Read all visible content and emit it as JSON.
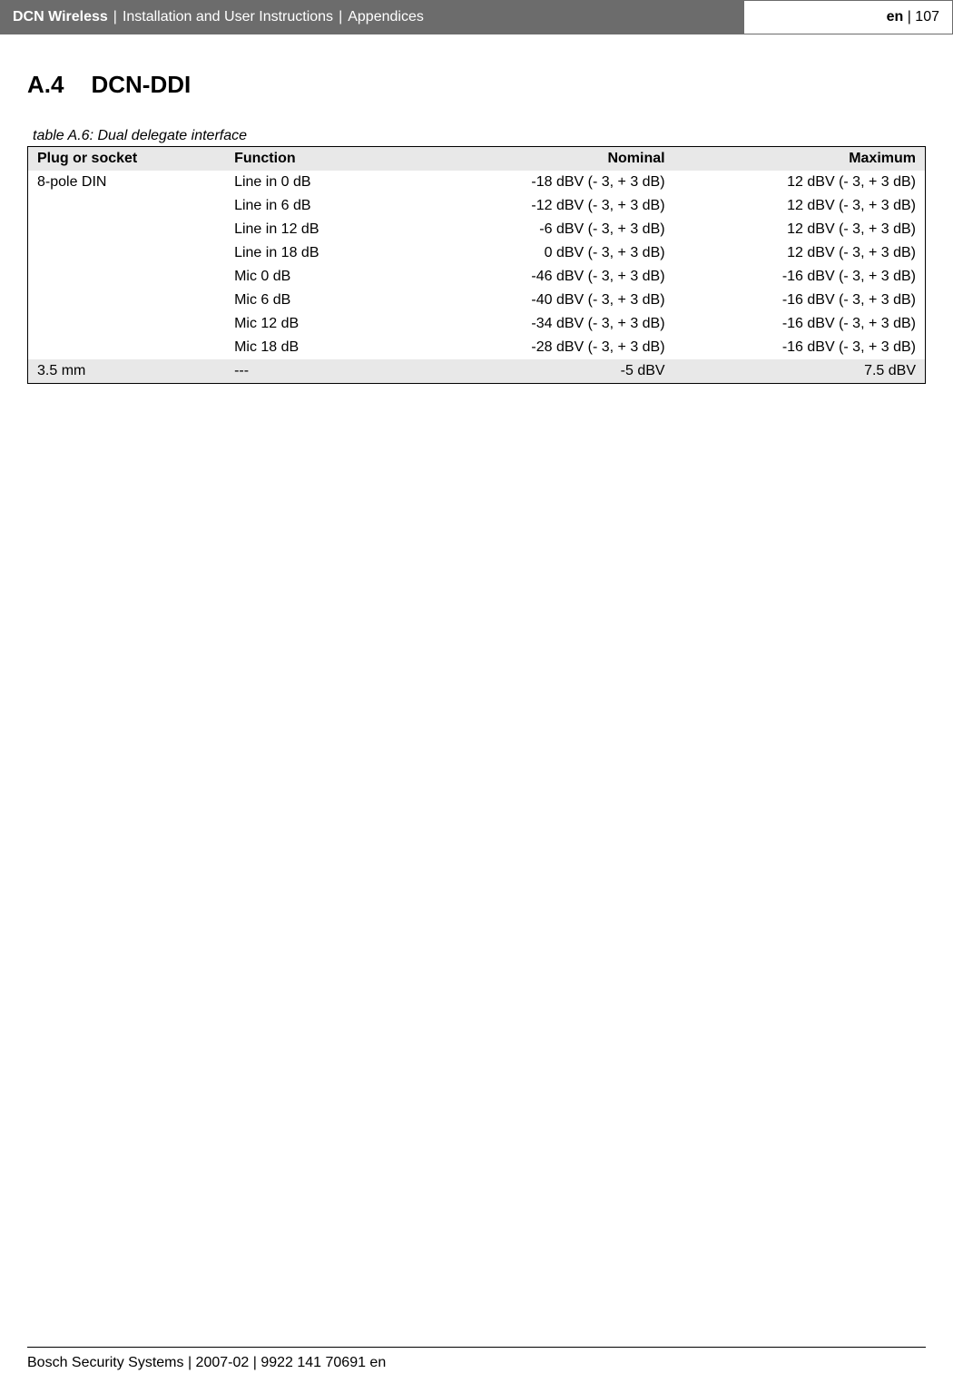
{
  "header": {
    "product": "DCN Wireless",
    "doc_title": "Installation and User Instructions",
    "section": "Appendices",
    "lang": "en",
    "page_num": "107"
  },
  "section": {
    "number": "A.4",
    "title": "DCN-DDI"
  },
  "table": {
    "caption": "table A.6: Dual delegate interface",
    "columns": [
      "Plug or socket",
      "Function",
      "Nominal",
      "Maximum"
    ],
    "rows": [
      {
        "plug": "8-pole DIN",
        "func": "Line in 0 dB",
        "nom": "-18 dBV (- 3, + 3 dB)",
        "max": "12 dBV (- 3, + 3 dB)",
        "shaded": false
      },
      {
        "plug": "",
        "func": "Line in 6 dB",
        "nom": "-12 dBV (- 3, + 3 dB)",
        "max": "12 dBV (- 3, + 3 dB)",
        "shaded": false
      },
      {
        "plug": "",
        "func": "Line in 12 dB",
        "nom": "-6 dBV (- 3, + 3 dB)",
        "max": "12 dBV (- 3, + 3 dB)",
        "shaded": false
      },
      {
        "plug": "",
        "func": "Line in 18 dB",
        "nom": "0 dBV (- 3, + 3 dB)",
        "max": "12 dBV (- 3, + 3 dB)",
        "shaded": false
      },
      {
        "plug": "",
        "func": "Mic 0 dB",
        "nom": "-46 dBV (- 3, + 3 dB)",
        "max": "-16 dBV (- 3, + 3 dB)",
        "shaded": false
      },
      {
        "plug": "",
        "func": "Mic 6 dB",
        "nom": "-40 dBV (- 3, + 3 dB)",
        "max": "-16 dBV (- 3, + 3 dB)",
        "shaded": false
      },
      {
        "plug": "",
        "func": "Mic 12 dB",
        "nom": "-34 dBV (- 3, + 3 dB)",
        "max": "-16 dBV (- 3, + 3 dB)",
        "shaded": false
      },
      {
        "plug": "",
        "func": "Mic 18 dB",
        "nom": "-28 dBV (- 3, + 3 dB)",
        "max": "-16 dBV (- 3, + 3 dB)",
        "shaded": false
      },
      {
        "plug": "3.5 mm",
        "func": "---",
        "nom": "-5 dBV",
        "max": "7.5 dBV",
        "shaded": true
      }
    ]
  },
  "footer": {
    "text": "Bosch Security Systems | 2007-02 | 9922 141 70691 en"
  }
}
